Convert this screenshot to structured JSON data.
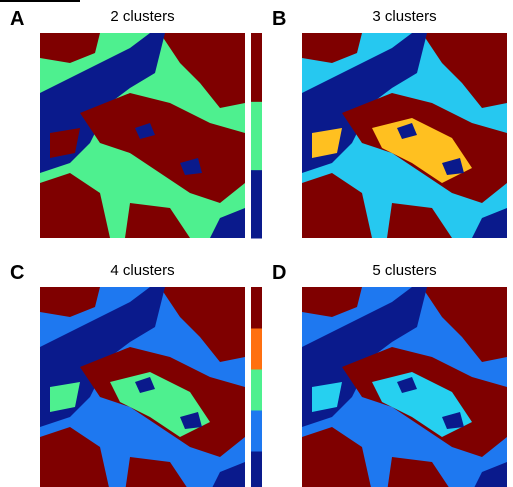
{
  "panels": [
    {
      "letter": "A",
      "title": "2 clusters",
      "colors": [
        "#0a1a8c",
        "#4ef08f",
        "#7f0000"
      ]
    },
    {
      "letter": "B",
      "title": "3 clusters",
      "colors": [
        "#0a1a8c",
        "#26c8f0",
        "#ffc020",
        "#7f0000"
      ]
    },
    {
      "letter": "C",
      "title": "4 clusters",
      "colors": [
        "#0a1a8c",
        "#1e78f0",
        "#4ef08f",
        "#ff7010",
        "#7f0000"
      ]
    },
    {
      "letter": "D",
      "title": "5 clusters",
      "colors": [
        "#0a1a8c",
        "#1e78f0",
        "#26d0f0",
        "#e8e040",
        "#ff7010",
        "#7f0000"
      ]
    }
  ]
}
